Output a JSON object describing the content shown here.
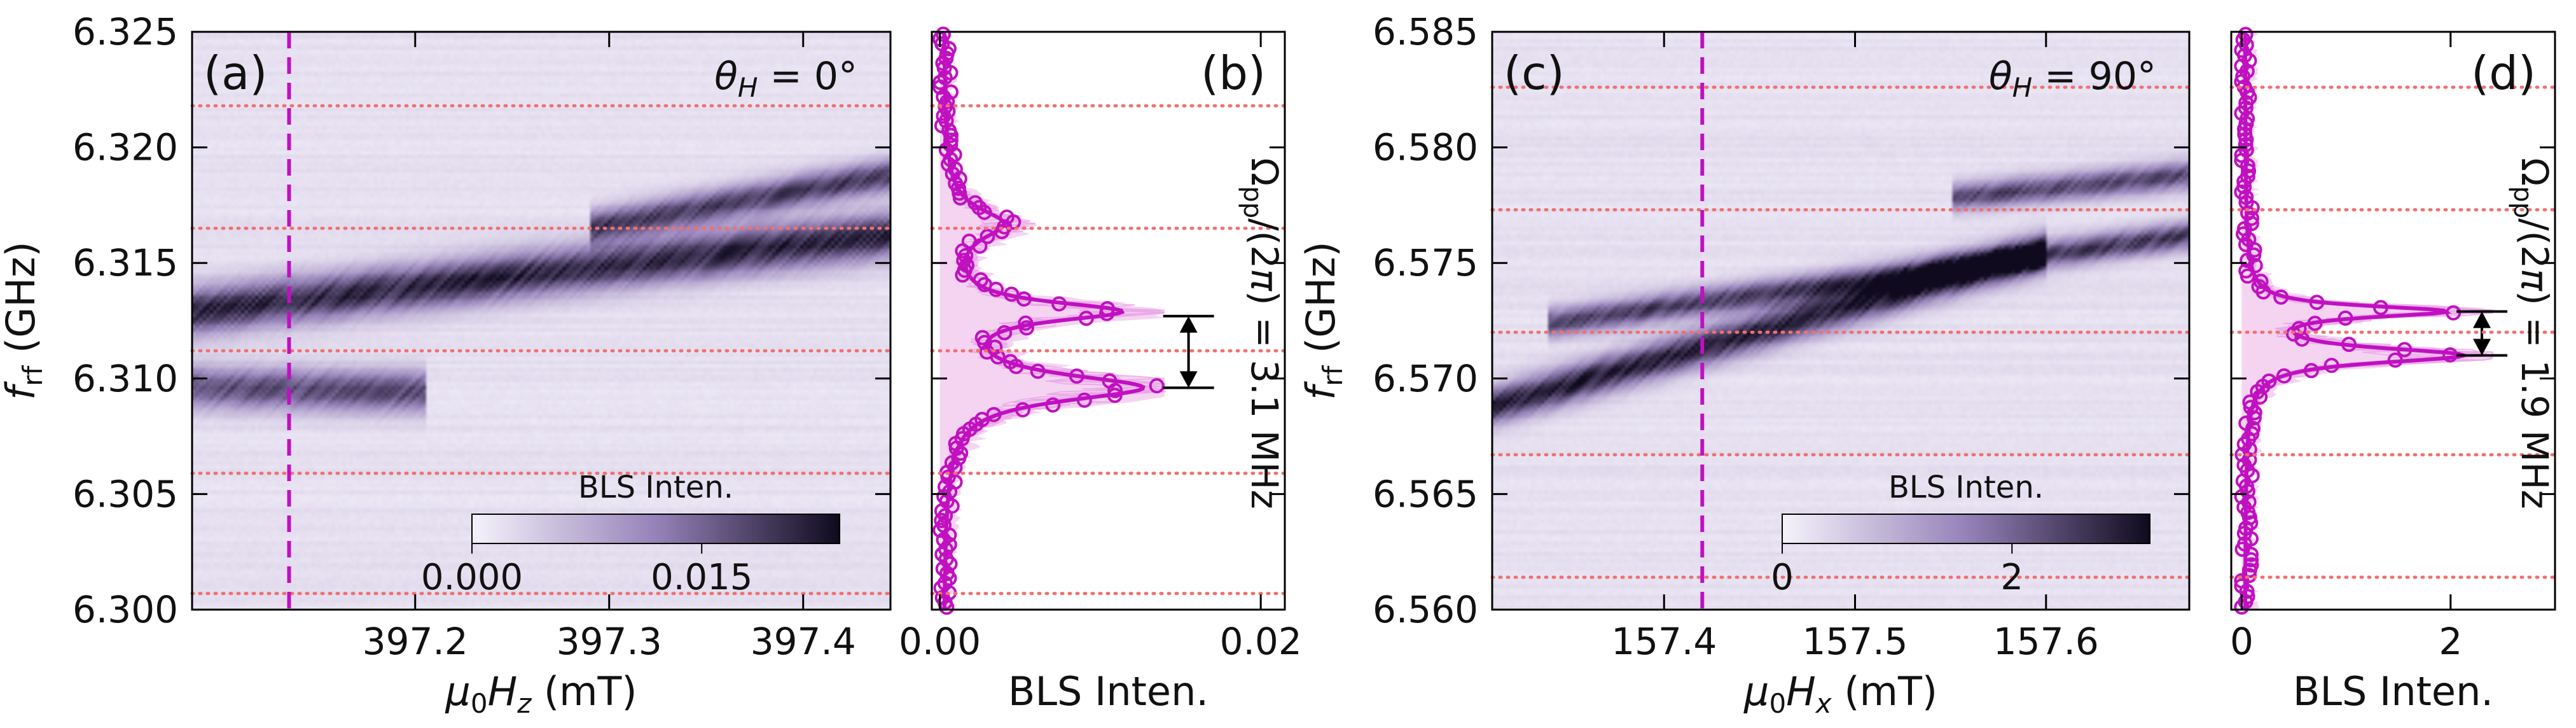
{
  "colors": {
    "cmap_low": "#f5f2fb",
    "cmap_high": "#0f0a1e",
    "accent": "#c010c0",
    "fill": "#f1c6ee",
    "dotted": "#f07070"
  },
  "chart_data": [
    {
      "id": "a",
      "type": "heatmap",
      "panel_label": "(a)",
      "angle_label": "θH = 0°",
      "xlabel": "μ0Hz (mT)",
      "ylabel": "frf (GHz)",
      "xlim": [
        397.085,
        397.445
      ],
      "ylim": [
        6.3,
        6.325
      ],
      "xticks": [
        397.2,
        397.3,
        397.4
      ],
      "xtick_labels": [
        "397.2",
        "397.3",
        "397.4"
      ],
      "yticks": [
        6.3,
        6.305,
        6.31,
        6.315,
        6.32,
        6.325
      ],
      "ytick_labels": [
        "6.300",
        "6.305",
        "6.310",
        "6.315",
        "6.320",
        "6.325"
      ],
      "vline_x": 397.135,
      "hlines": [
        6.3007,
        6.3059,
        6.3112,
        6.3165,
        6.3218
      ],
      "colorbar": {
        "title": "BLS Inten.",
        "range": [
          0,
          0.024
        ],
        "ticks": [
          0.0,
          0.015
        ],
        "tick_labels": [
          "0.000",
          "0.015"
        ]
      },
      "bands": [
        {
          "x": [
            397.085,
            397.445
          ],
          "f_start": 6.3129,
          "f_end": 6.3162,
          "width": 0.001,
          "amp": 0.85
        },
        {
          "x": [
            397.085,
            397.205
          ],
          "f_start": 6.3096,
          "f_end": 6.3094,
          "width": 0.0009,
          "amp": 0.7
        },
        {
          "x": [
            397.3,
            397.445
          ],
          "f_start": 6.3167,
          "f_end": 6.3188,
          "width": 0.0007,
          "amp": 0.75
        }
      ]
    },
    {
      "id": "b",
      "type": "line",
      "panel_label": "(b)",
      "xlabel": "BLS Inten.",
      "xlim": [
        -0.0005,
        0.0215
      ],
      "ylim": [
        6.3,
        6.325
      ],
      "xticks": [
        0.0,
        0.02
      ],
      "xtick_labels": [
        "0.00",
        "0.02"
      ],
      "hlines": [
        6.3007,
        6.3059,
        6.3112,
        6.3165,
        6.3218
      ],
      "annotation": "Ωpp/(2π) = 3.1 MHz",
      "arrow": {
        "x": 0.0155,
        "y1": 6.3096,
        "y2": 6.3127
      },
      "fit_peaks": [
        {
          "center": 6.3096,
          "amp": 0.0122,
          "width": 0.0007
        },
        {
          "center": 6.3129,
          "amp": 0.0105,
          "width": 0.0005
        },
        {
          "center": 6.3167,
          "amp": 0.0035,
          "width": 0.0008
        }
      ],
      "fit_baseline": 0.0002,
      "fill_max": 0.014
    },
    {
      "id": "c",
      "type": "heatmap",
      "panel_label": "(c)",
      "angle_label": "θH = 90°",
      "xlabel": "μ0Hx (mT)",
      "ylabel": "frf (GHz)",
      "xlim": [
        157.31,
        157.675
      ],
      "ylim": [
        6.56,
        6.585
      ],
      "xticks": [
        157.4,
        157.5,
        157.6
      ],
      "xtick_labels": [
        "157.4",
        "157.5",
        "157.6"
      ],
      "yticks": [
        6.56,
        6.565,
        6.57,
        6.575,
        6.58,
        6.585
      ],
      "ytick_labels": [
        "6.560",
        "6.565",
        "6.570",
        "6.575",
        "6.580",
        "6.585"
      ],
      "vline_x": 157.42,
      "hlines": [
        6.5614,
        6.5667,
        6.572,
        6.5773,
        6.5826
      ],
      "colorbar": {
        "title": "BLS Inten.",
        "range": [
          0,
          3.2
        ],
        "ticks": [
          0,
          2
        ],
        "tick_labels": [
          "0",
          "2"
        ]
      },
      "bands": [
        {
          "x": [
            157.31,
            157.6
          ],
          "f_start": 6.5688,
          "f_end": 6.5755,
          "width": 0.0008,
          "amp": 0.9
        },
        {
          "x": [
            157.35,
            157.675
          ],
          "f_start": 6.5725,
          "f_end": 6.5762,
          "width": 0.0006,
          "amp": 0.75
        },
        {
          "x": [
            157.56,
            157.675
          ],
          "f_start": 6.5779,
          "f_end": 6.5788,
          "width": 0.0006,
          "amp": 0.7
        }
      ]
    },
    {
      "id": "d",
      "type": "line",
      "panel_label": "(d)",
      "xlabel": "BLS Inten.",
      "xlim": [
        -0.1,
        3.0
      ],
      "ylim": [
        6.56,
        6.585
      ],
      "xticks": [
        0,
        2
      ],
      "xtick_labels": [
        "0",
        "2"
      ],
      "hlines": [
        6.5614,
        6.5667,
        6.572,
        6.5773,
        6.5826
      ],
      "annotation": "Ωpp/(2π) = 1.9 MHz",
      "arrow": {
        "x": 2.3,
        "y1": 6.571,
        "y2": 6.5729
      },
      "fit_peaks": [
        {
          "center": 6.571,
          "amp": 2.05,
          "width": 0.0004
        },
        {
          "center": 6.5729,
          "amp": 1.85,
          "width": 0.0003
        }
      ],
      "fit_baseline": 0.03,
      "fill_max": 2.4
    }
  ]
}
